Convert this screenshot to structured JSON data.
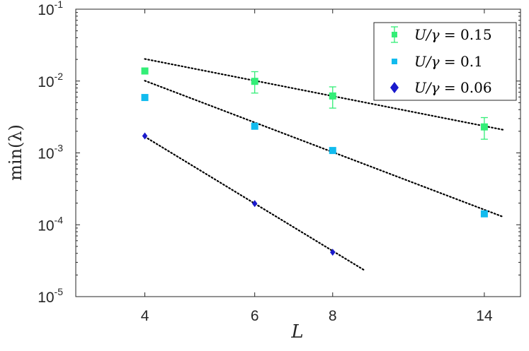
{
  "chart_data": {
    "type": "scatter",
    "title": "",
    "xlabel": "L",
    "ylabel": "min(λ)",
    "xscale": "log",
    "yscale": "log",
    "xlim": [
      3.1,
      16
    ],
    "ylim": [
      1e-05,
      0.1
    ],
    "xticks": [
      4,
      6,
      8,
      14
    ],
    "yticks": [
      {
        "value": 0.1,
        "base": "10",
        "exp": "-1"
      },
      {
        "value": 0.01,
        "base": "10",
        "exp": "-2"
      },
      {
        "value": 0.001,
        "base": "10",
        "exp": "-3"
      },
      {
        "value": 0.0001,
        "base": "10",
        "exp": "-4"
      },
      {
        "value": 1e-05,
        "base": "10",
        "exp": "-5"
      }
    ],
    "grid": false,
    "legend_position": "top-right",
    "series": [
      {
        "name": "U/γ = 0.15",
        "color": "#33ee77",
        "marker": "square",
        "points": [
          {
            "x": 4,
            "y": 0.0138
          },
          {
            "x": 6,
            "y": 0.0099,
            "err_low": 0.0068,
            "err_high": 0.0135
          },
          {
            "x": 8,
            "y": 0.0062,
            "err_low": 0.0042,
            "err_high": 0.0083
          },
          {
            "x": 14,
            "y": 0.0023,
            "err_low": 0.00155,
            "err_high": 0.0031
          }
        ],
        "fit": {
          "x": [
            4,
            15
          ],
          "y": [
            0.0203,
            0.0021
          ]
        }
      },
      {
        "name": "U/γ = 0.1",
        "color": "#11bbee",
        "marker": "square",
        "points": [
          {
            "x": 4,
            "y": 0.0059
          },
          {
            "x": 6,
            "y": 0.00235
          },
          {
            "x": 8,
            "y": 0.00108
          },
          {
            "x": 14,
            "y": 0.000142
          }
        ],
        "fit": {
          "x": [
            4,
            15
          ],
          "y": [
            0.0101,
            0.000129
          ]
        }
      },
      {
        "name": "U/γ = 0.06",
        "color": "#1a1acc",
        "marker": "diamond",
        "points": [
          {
            "x": 4,
            "y": 0.00172
          },
          {
            "x": 6,
            "y": 0.000197
          },
          {
            "x": 8,
            "y": 4.15e-05
          }
        ],
        "fit": {
          "x": [
            4,
            9
          ],
          "y": [
            0.00168,
            2.32e-05
          ]
        }
      }
    ],
    "legend": [
      {
        "prefix": "U/γ",
        "value": " = 0.15"
      },
      {
        "prefix": "U/γ",
        "value": " = 0.1"
      },
      {
        "prefix": "U/γ",
        "value": " = 0.06"
      }
    ]
  }
}
